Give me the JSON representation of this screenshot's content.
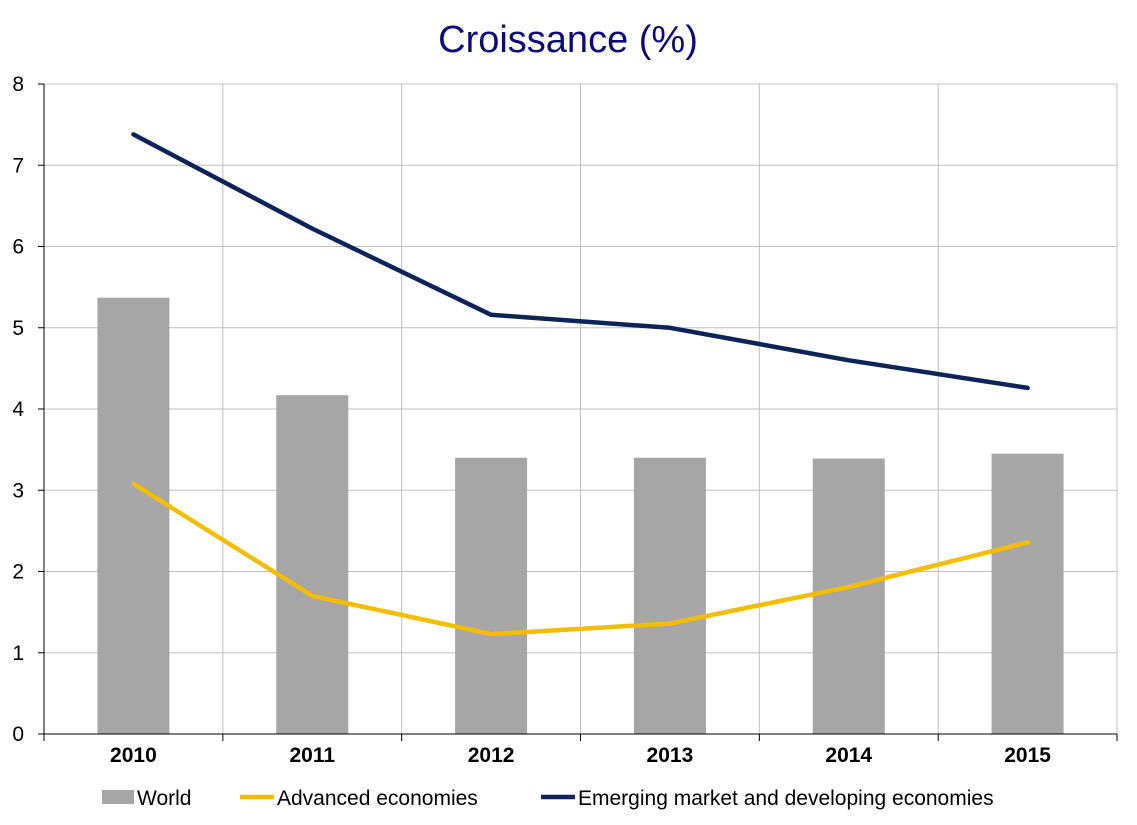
{
  "chart_data": {
    "type": "bar",
    "title": "Croissance (%)",
    "xlabel": "",
    "ylabel": "",
    "categories": [
      "2010",
      "2011",
      "2012",
      "2013",
      "2014",
      "2015"
    ],
    "ylim": [
      0,
      8
    ],
    "yticks": [
      "0",
      "1",
      "2",
      "3",
      "4",
      "5",
      "6",
      "7",
      "8"
    ],
    "grid": true,
    "legend_position": "bottom",
    "series": [
      {
        "name": "World",
        "kind": "bar",
        "color": "#a6a6a6",
        "values": [
          5.37,
          4.17,
          3.4,
          3.4,
          3.39,
          3.45
        ]
      },
      {
        "name": "Advanced economies",
        "kind": "line",
        "color": "#f5bd00",
        "values": [
          3.08,
          1.7,
          1.23,
          1.36,
          1.81,
          2.36
        ]
      },
      {
        "name": "Emerging market and developing economies",
        "kind": "line",
        "color": "#0d2359",
        "values": [
          7.38,
          6.22,
          5.16,
          5.0,
          4.6,
          4.26
        ]
      }
    ]
  }
}
